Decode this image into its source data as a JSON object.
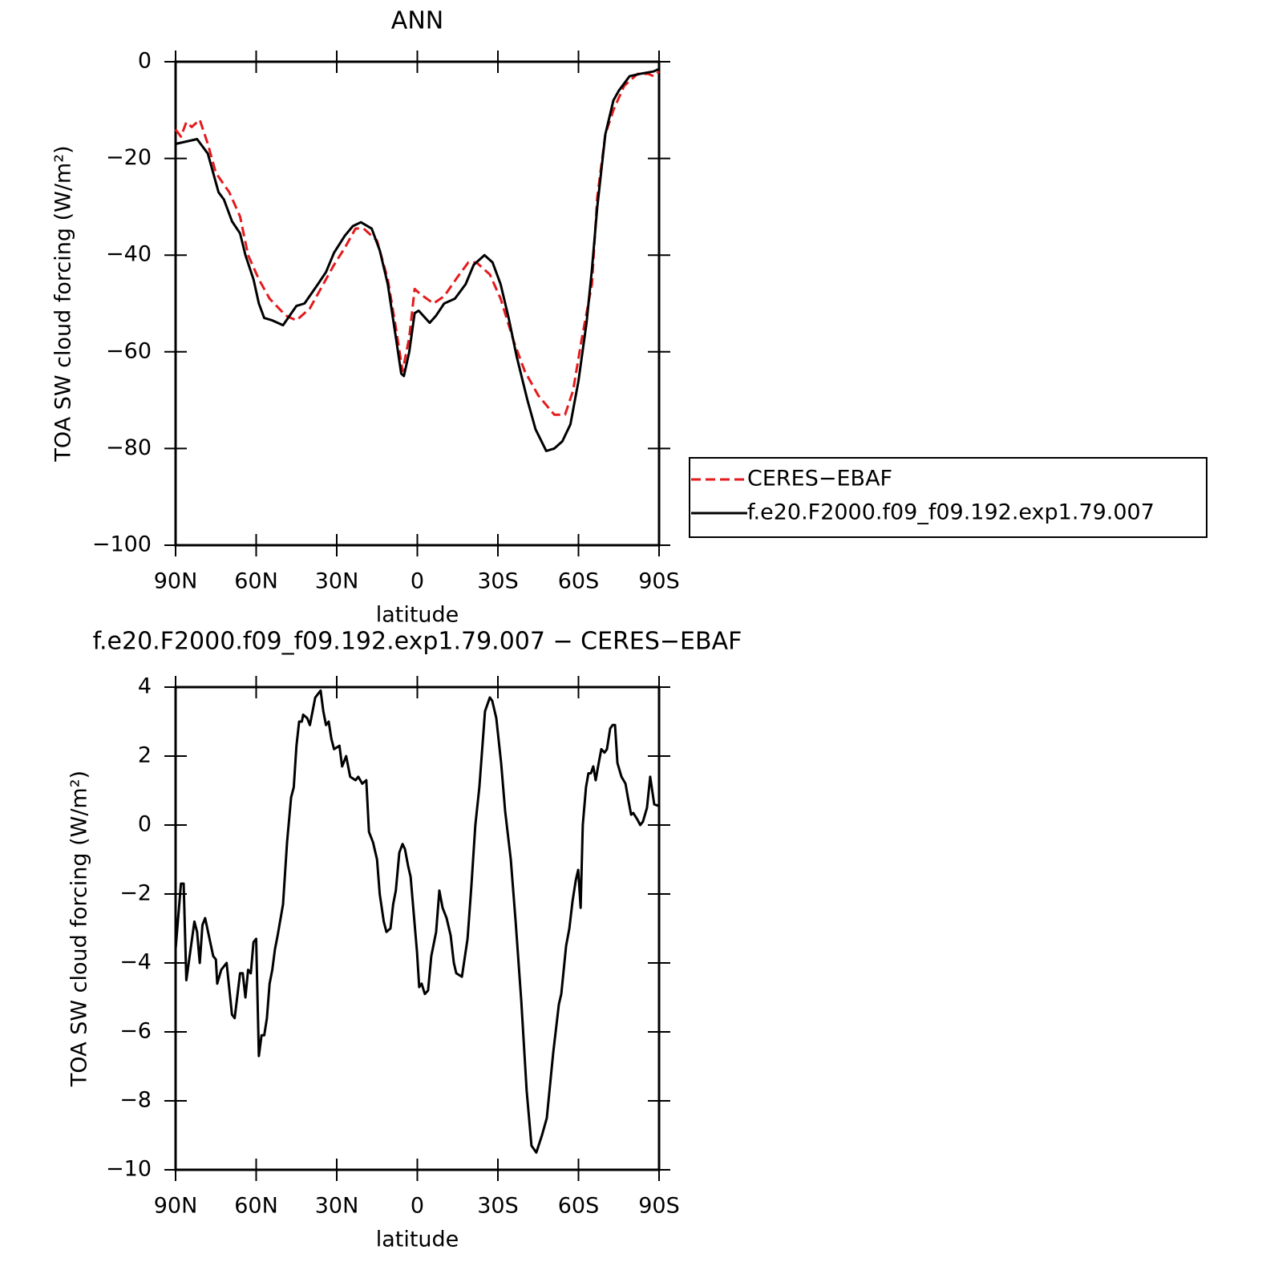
{
  "chart_data": [
    {
      "type": "line",
      "title": "ANN",
      "xlabel": "latitude",
      "ylabel": "TOA SW cloud forcing (W/m²)",
      "xlim": [
        90,
        -90
      ],
      "xticks": [
        {
          "value": 90,
          "label": "90N"
        },
        {
          "value": 60,
          "label": "60N"
        },
        {
          "value": 30,
          "label": "30N"
        },
        0,
        {
          "value": -30,
          "label": "30S"
        },
        {
          "value": -60,
          "label": "60S"
        },
        {
          "value": -90,
          "label": "90S"
        }
      ],
      "ylim": [
        -100,
        0
      ],
      "yticks": [
        {
          "value": -100,
          "label": "−100"
        },
        {
          "value": -80,
          "label": "−80"
        },
        {
          "value": -60,
          "label": "−60"
        },
        {
          "value": -40,
          "label": "−40"
        },
        {
          "value": -20,
          "label": "−20"
        },
        0
      ],
      "legend": "right",
      "series": [
        {
          "name": "CERES−EBAF",
          "color": "#e41a1c",
          "line_style": "dashed",
          "x": [
            90,
            88,
            86,
            84,
            81,
            78,
            75,
            70,
            66,
            63,
            59,
            55,
            49,
            45,
            40,
            36,
            31,
            27,
            23,
            20,
            15,
            11,
            8,
            5.5,
            3,
            1,
            -1,
            -6,
            -10,
            -15,
            -19,
            -22,
            -27,
            -31,
            -36,
            -40,
            -45,
            -51,
            -55,
            -58,
            -61,
            -65,
            -67,
            -70,
            -73,
            -77,
            -82,
            -86,
            -88,
            -90
          ],
          "values": [
            -14,
            -15.5,
            -12.5,
            -13.5,
            -12,
            -17,
            -23,
            -27,
            -32,
            -40,
            -45,
            -49,
            -52.5,
            -53.5,
            -51,
            -47,
            -42,
            -38.5,
            -34.5,
            -34.5,
            -37,
            -45,
            -55,
            -64,
            -57,
            -47,
            -48,
            -50,
            -48.5,
            -44.5,
            -41.5,
            -41.5,
            -44,
            -49,
            -58,
            -64,
            -69,
            -73,
            -73,
            -68,
            -58,
            -46,
            -28,
            -15,
            -10,
            -5,
            -2.5,
            -2.5,
            -3,
            -2
          ]
        },
        {
          "name": "f.e20.F2000.f09_f09.192.exp1.79.007",
          "color": "#000000",
          "line_style": "solid",
          "x": [
            90,
            82,
            78,
            74,
            72,
            69,
            66,
            64,
            61,
            59,
            57,
            54,
            50,
            45,
            42,
            37,
            34,
            31,
            27,
            24,
            21,
            17,
            14,
            11,
            8,
            6,
            5,
            3,
            1,
            -0.5,
            -4.6,
            -7,
            -10,
            -14,
            -18,
            -21,
            -25,
            -28,
            -31,
            -34,
            -37,
            -41,
            -44,
            -48,
            -51,
            -54,
            -57,
            -60,
            -63,
            -65,
            -67,
            -70,
            -73,
            -75,
            -79,
            -83,
            -88,
            -90
          ],
          "values": [
            -17,
            -16,
            -19,
            -27,
            -28.5,
            -33,
            -35.5,
            -40,
            -45,
            -50,
            -53,
            -53.5,
            -54.5,
            -50.5,
            -50,
            -46,
            -43.5,
            -39.5,
            -36,
            -34,
            -33.2,
            -34.5,
            -39,
            -46,
            -57,
            -64.5,
            -65,
            -60,
            -52,
            -51.5,
            -54,
            -52.5,
            -50,
            -49,
            -46,
            -42,
            -40,
            -41.5,
            -46,
            -53,
            -61,
            -70,
            -76,
            -80.5,
            -80,
            -78.5,
            -75,
            -66,
            -54,
            -43,
            -30,
            -15,
            -8,
            -6,
            -3,
            -2.5,
            -2,
            -1.5
          ]
        }
      ]
    },
    {
      "type": "line",
      "title": "f.e20.F2000.f09_f09.192.exp1.79.007 − CERES−EBAF",
      "xlabel": "latitude",
      "ylabel": "TOA SW cloud forcing (W/m²)",
      "xlim": [
        90,
        -90
      ],
      "xticks": [
        {
          "value": 90,
          "label": "90N"
        },
        {
          "value": 60,
          "label": "60N"
        },
        {
          "value": 30,
          "label": "30N"
        },
        0,
        {
          "value": -30,
          "label": "30S"
        },
        {
          "value": -60,
          "label": "60S"
        },
        {
          "value": -90,
          "label": "90S"
        }
      ],
      "ylim": [
        -10,
        4
      ],
      "yticks": [
        {
          "value": -10,
          "label": "−10"
        },
        {
          "value": -8,
          "label": "−8"
        },
        {
          "value": -6,
          "label": "−6"
        },
        {
          "value": -4,
          "label": "−4"
        },
        {
          "value": -2,
          "label": "−2"
        },
        0,
        2,
        4
      ],
      "series": [
        {
          "color": "#000000",
          "line_style": "solid",
          "x": [
            90,
            88,
            87,
            86,
            83,
            82,
            81,
            80,
            79,
            76,
            75,
            74.5,
            73,
            71,
            69,
            68,
            66,
            65,
            64,
            63,
            62,
            61,
            60,
            59,
            58,
            57,
            56,
            55,
            54,
            53,
            52,
            50,
            48.5,
            47,
            46,
            45,
            44,
            43,
            42.5,
            41,
            40,
            38,
            36,
            35,
            34,
            33,
            32,
            31,
            29,
            28,
            26.5,
            25,
            23,
            22,
            20.5,
            19,
            18,
            16.5,
            15,
            14,
            12.5,
            11.5,
            10,
            9,
            8,
            6.7,
            5.5,
            4.6,
            3.4,
            2.5,
            1.3,
            0.1,
            -0.7,
            -1.6,
            -2.8,
            -4,
            -5.2,
            -7,
            -8.2,
            -9.4,
            -10.9,
            -12.4,
            -13.6,
            -14.5,
            -16.6,
            -18.7,
            -20.1,
            -21.6,
            -23.1,
            -25.2,
            -27,
            -27.9,
            -29.4,
            -31.2,
            -32.7,
            -34.8,
            -36.6,
            -38.7,
            -40.7,
            -42.5,
            -44.3,
            -46.4,
            -48.2,
            -50.6,
            -52.7,
            -53.6,
            -55.4,
            -56.6,
            -57.8,
            -59,
            -59.9,
            -60.8,
            -61.6,
            -62.8,
            -63.7,
            -64.6,
            -65.5,
            -66.4,
            -67.3,
            -68.5,
            -69.7,
            -70.6,
            -71.8,
            -72.7,
            -73.6,
            -74.5,
            -76,
            -77.5,
            -78.4,
            -79.6,
            -80.4,
            -82,
            -83,
            -84,
            -85.5,
            -86.7,
            -88.2,
            -90
          ],
          "values": [
            -3.6,
            -1.7,
            -1.7,
            -4.5,
            -2.8,
            -3.1,
            -4.0,
            -2.9,
            -2.7,
            -3.8,
            -3.9,
            -4.6,
            -4.2,
            -4.0,
            -5.5,
            -5.6,
            -4.3,
            -4.3,
            -5.0,
            -4.2,
            -4.3,
            -3.4,
            -3.3,
            -6.7,
            -6.1,
            -6.1,
            -5.6,
            -4.6,
            -4.2,
            -3.6,
            -3.2,
            -2.3,
            -0.5,
            0.8,
            1.1,
            2.3,
            3.0,
            3.0,
            3.2,
            3.1,
            2.9,
            3.7,
            3.9,
            3.3,
            2.9,
            3.0,
            2.5,
            2.2,
            2.3,
            1.7,
            2.0,
            1.4,
            1.3,
            1.4,
            1.2,
            1.3,
            -0.2,
            -0.5,
            -1.0,
            -2.0,
            -2.8,
            -3.1,
            -3.0,
            -2.3,
            -1.9,
            -0.8,
            -0.55,
            -0.7,
            -1.2,
            -1.5,
            -2.6,
            -3.7,
            -4.7,
            -4.6,
            -4.9,
            -4.8,
            -3.8,
            -3.1,
            -1.9,
            -2.4,
            -2.7,
            -3.2,
            -4.0,
            -4.3,
            -4.4,
            -3.3,
            -1.8,
            0.0,
            1.1,
            3.3,
            3.7,
            3.6,
            3.1,
            1.8,
            0.4,
            -1.0,
            -2.8,
            -5.1,
            -7.7,
            -9.3,
            -9.5,
            -9.0,
            -8.5,
            -6.6,
            -5.2,
            -4.9,
            -3.5,
            -3.0,
            -2.2,
            -1.6,
            -1.3,
            -2.4,
            0.0,
            1.1,
            1.5,
            1.5,
            1.7,
            1.3,
            1.7,
            2.2,
            2.1,
            2.2,
            2.8,
            2.9,
            2.9,
            1.8,
            1.4,
            1.2,
            0.8,
            0.3,
            0.35,
            0.15,
            0.0,
            0.1,
            0.5,
            1.4,
            0.6,
            0.55
          ]
        }
      ]
    }
  ]
}
